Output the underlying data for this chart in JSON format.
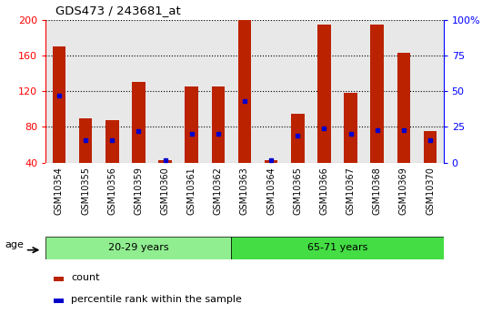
{
  "title": "GDS473 / 243681_at",
  "samples": [
    "GSM10354",
    "GSM10355",
    "GSM10356",
    "GSM10359",
    "GSM10360",
    "GSM10361",
    "GSM10362",
    "GSM10363",
    "GSM10364",
    "GSM10365",
    "GSM10366",
    "GSM10367",
    "GSM10368",
    "GSM10369",
    "GSM10370"
  ],
  "counts": [
    170,
    90,
    88,
    130,
    43,
    125,
    125,
    200,
    43,
    95,
    195,
    118,
    195,
    163,
    75
  ],
  "percentile_ranks": [
    47,
    16,
    16,
    22,
    2,
    20,
    20,
    43,
    2,
    19,
    24,
    20,
    23,
    23,
    16
  ],
  "groups": [
    {
      "label": "20-29 years",
      "start": 0,
      "end": 7,
      "color": "#90ee90"
    },
    {
      "label": "65-71 years",
      "start": 7,
      "end": 15,
      "color": "#44dd44"
    }
  ],
  "group_label": "age",
  "ymin": 40,
  "ymax": 200,
  "yticks_left": [
    40,
    80,
    120,
    160,
    200
  ],
  "ytick_labels_left": [
    "40",
    "80",
    "120",
    "160",
    "200"
  ],
  "yticks_right_vals": [
    40,
    80,
    120,
    160,
    200
  ],
  "ytick_labels_right": [
    "0",
    "25",
    "50",
    "75",
    "100%"
  ],
  "bar_color": "#bb2200",
  "marker_color": "#0000cc",
  "bg_color": "#cccccc",
  "plot_bg": "#e8e8e8",
  "legend_count": "count",
  "legend_pct": "percentile rank within the sample",
  "bar_width": 0.5
}
